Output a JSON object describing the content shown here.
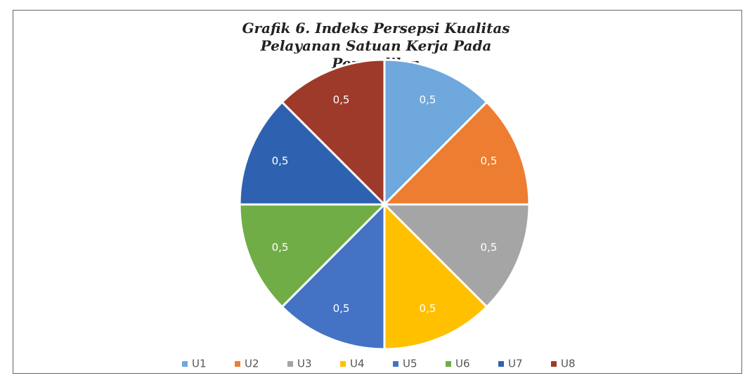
{
  "chart_data": {
    "type": "pie",
    "title": "Grafik 6. Indeks Persepsi Kualitas Pelayanan Satuan Kerja Pada Pengadilan",
    "categories": [
      "U1",
      "U2",
      "U3",
      "U4",
      "U5",
      "U6",
      "U7",
      "U8"
    ],
    "values": [
      0.5,
      0.5,
      0.5,
      0.5,
      0.5,
      0.5,
      0.5,
      0.5
    ],
    "value_labels": [
      "0,5",
      "0,5",
      "0,5",
      "0,5",
      "0,5",
      "0,5",
      "0,5",
      "0,5"
    ],
    "colors": [
      "#6fa8dc",
      "#ed7d31",
      "#a5a5a5",
      "#ffc000",
      "#4472c4",
      "#70ad47",
      "#2e62b0",
      "#9e3a2a"
    ],
    "legend": "bottom"
  }
}
